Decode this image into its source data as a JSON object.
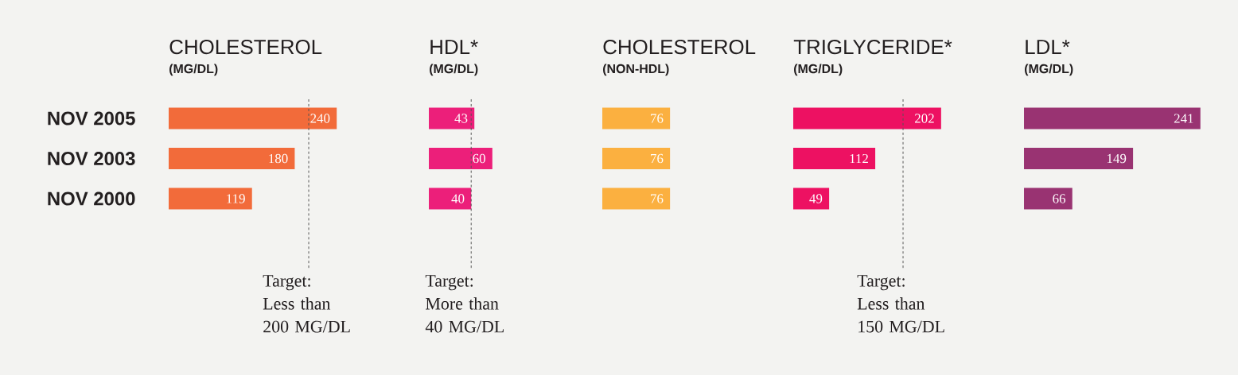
{
  "chart_data": [
    {
      "type": "bar",
      "orientation": "horizontal",
      "title": "CHOLESTEROL",
      "subtitle": "(MG/DL)",
      "categories": [
        "NOV 2005",
        "NOV 2003",
        "NOV 2000"
      ],
      "values": [
        240,
        180,
        119
      ],
      "color": "#f26b3a",
      "data_labels": true,
      "tick_labels": "y",
      "ref_lines": [
        {
          "axis": "x",
          "value": 200,
          "label": "Target: Less than 200 MG/DL",
          "color": "#555555",
          "line_style": "dashed"
        }
      ]
    },
    {
      "type": "bar",
      "orientation": "horizontal",
      "title": "HDL*",
      "subtitle": "(MG/DL)",
      "categories": [
        null,
        null,
        null
      ],
      "values": [
        43,
        60,
        40
      ],
      "color": "#ec1f7a",
      "data_labels": true,
      "ref_lines": [
        {
          "axis": "x",
          "value": 40,
          "label": "Target: More than 40 MG/DL",
          "color": "#555555",
          "line_style": "dashed"
        }
      ]
    },
    {
      "type": "bar",
      "orientation": "horizontal",
      "title": "CHOLESTEROL",
      "subtitle": "(NON-HDL)",
      "categories": [
        null,
        null,
        null
      ],
      "values": [
        76,
        76,
        76
      ],
      "color": "#fbb040",
      "data_labels": true
    },
    {
      "type": "bar",
      "orientation": "horizontal",
      "title": "TRIGLYCERIDE*",
      "subtitle": "(MG/DL)",
      "categories": [
        null,
        null,
        null
      ],
      "values": [
        202,
        112,
        49
      ],
      "color": "#ed1162",
      "data_labels": true,
      "ref_lines": [
        {
          "axis": "x",
          "value": 150,
          "label": "Target: Less than 150 MG/DL",
          "color": "#555555",
          "line_style": "dashed"
        }
      ]
    },
    {
      "type": "bar",
      "orientation": "horizontal",
      "title": "LDL*",
      "subtitle": "(MG/DL)",
      "categories": [
        null,
        null,
        null
      ],
      "values": [
        241,
        149,
        66
      ],
      "color": "#993372",
      "data_labels": true
    }
  ]
}
